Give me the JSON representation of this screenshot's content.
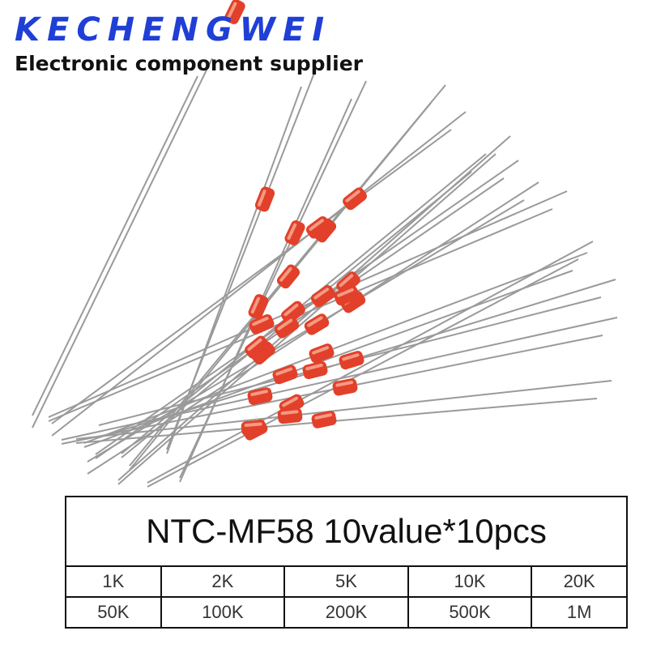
{
  "header": {
    "brand": "KECHENGWEI",
    "tagline": "Electronic component supplier"
  },
  "table": {
    "title": "NTC-MF58 10value*10pcs",
    "rows": [
      [
        "1K",
        "2K",
        "5K",
        "10K",
        "20K"
      ],
      [
        "50K",
        "100K",
        "200K",
        "500K",
        "1M"
      ]
    ]
  }
}
